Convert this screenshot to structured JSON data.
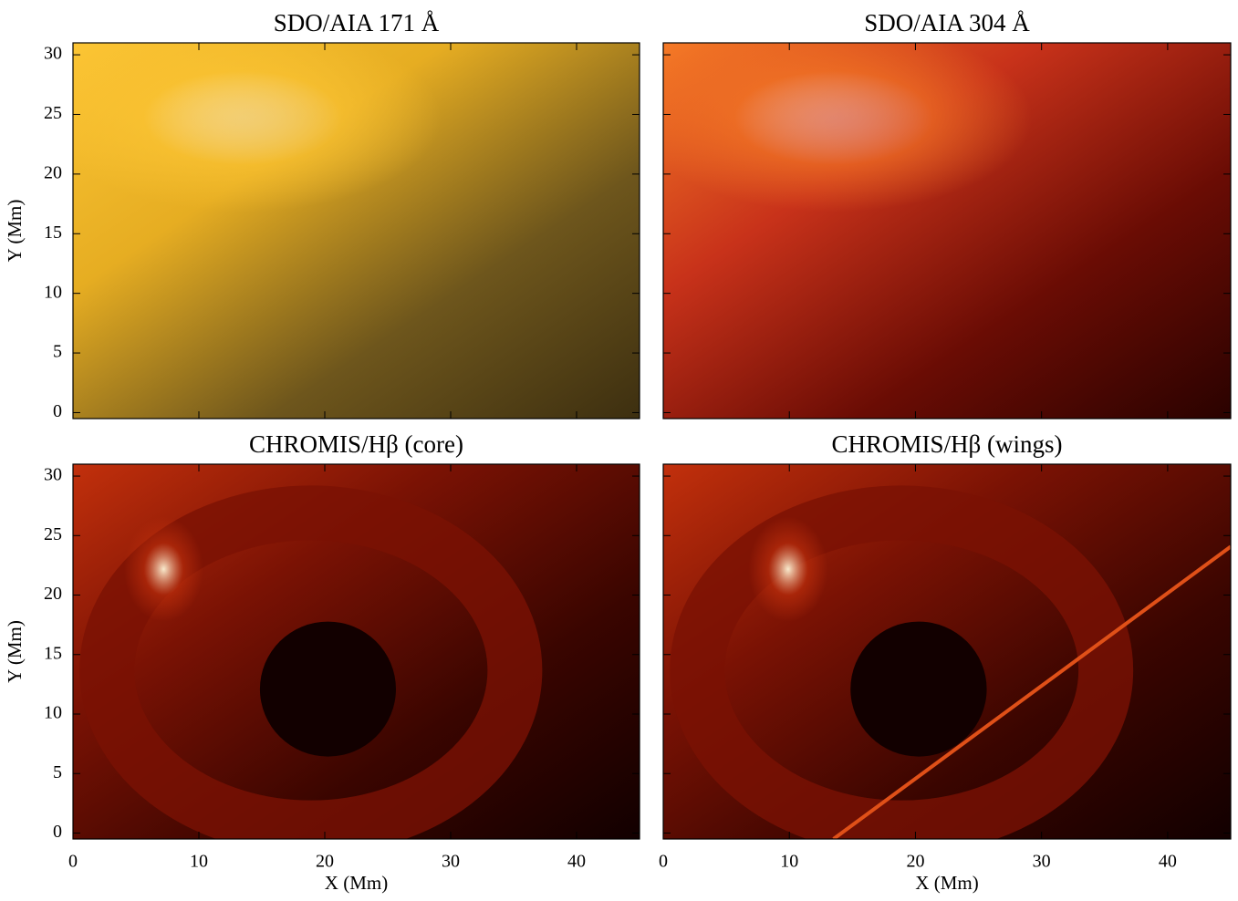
{
  "chart_data": [
    {
      "type": "image",
      "title": "SDO/AIA 171 Å",
      "ylabel": "Y (Mm)",
      "xlim": [
        0,
        45
      ],
      "ylim": [
        -0.5,
        31
      ],
      "xticks": [
        0,
        10,
        20,
        30,
        40
      ],
      "yticks": [
        0,
        5,
        10,
        15,
        20,
        25,
        30
      ],
      "colormap": [
        "#fcc534",
        "#e6ad22",
        "#6e561c",
        "#3d2f10"
      ]
    },
    {
      "type": "image",
      "title": "SDO/AIA 304 Å",
      "xlim": [
        0,
        45
      ],
      "ylim": [
        -0.5,
        31
      ],
      "xticks": [
        0,
        10,
        20,
        30,
        40
      ],
      "yticks": [
        0,
        5,
        10,
        15,
        20,
        25,
        30
      ],
      "colormap": [
        "#f57a26",
        "#c8321a",
        "#6a0c04",
        "#2a0200"
      ]
    },
    {
      "type": "image",
      "title": "CHROMIS/Hβ (core)",
      "xlabel": "X (Mm)",
      "ylabel": "Y (Mm)",
      "xlim": [
        0,
        45
      ],
      "ylim": [
        -0.5,
        31
      ],
      "xticks": [
        0,
        10,
        20,
        30,
        40
      ],
      "yticks": [
        0,
        5,
        10,
        15,
        20,
        25,
        30
      ],
      "colormap": [
        "#c2300c",
        "#7a1204",
        "#3a0500",
        "#120000"
      ]
    },
    {
      "type": "image",
      "title": "CHROMIS/Hβ (wings)",
      "xlabel": "X (Mm)",
      "xlim": [
        0,
        45
      ],
      "ylim": [
        -0.5,
        31
      ],
      "xticks": [
        0,
        10,
        20,
        30,
        40
      ],
      "yticks": [
        0,
        5,
        10,
        15,
        20,
        25,
        30
      ],
      "colormap": [
        "#c2300c",
        "#7a1204",
        "#3a0500",
        "#120000"
      ]
    }
  ]
}
